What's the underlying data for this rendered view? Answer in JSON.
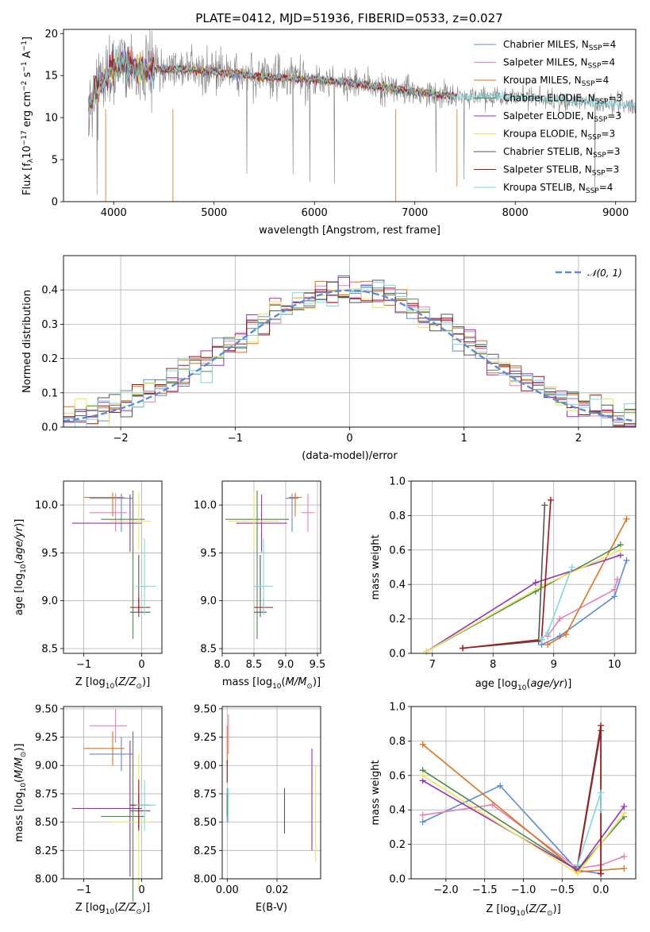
{
  "title": "PLATE=0412, MJD=51936, FIBERID=0533, z=0.027",
  "colors": {
    "Chabrier MILES": "#5b8bd9",
    "Salpeter MILES": "#e87fb8",
    "Kroupa MILES": "#e0731b",
    "Chabrier ELODIE": "#4f8a4c",
    "Salpeter ELODIE": "#9b30b8",
    "Kroupa ELODIE": "#e8e85a",
    "Chabrier STELIB": "#555555",
    "Salpeter STELIB": "#aa1111",
    "Kroupa STELIB": "#7fd8e0",
    "data": "#808080",
    "normal": "#5b8bd9"
  },
  "chart_data": [
    {
      "id": "spectrum",
      "type": "line",
      "xlabel": "wavelength [Angstrom, rest frame]",
      "ylabel": "Flux [f_λ10^{−17} erg cm^{−2} s^{−1} A^{−1}]",
      "xlim": [
        3500,
        9200
      ],
      "ylim": [
        0,
        20.5
      ],
      "xticks": [
        4000,
        5000,
        6000,
        7000,
        8000,
        9000
      ],
      "yticks": [
        0,
        5,
        10,
        15,
        20
      ],
      "legend_position": "upper-right",
      "legend": [
        {
          "name": "Chabrier MILES",
          "ssp": "4"
        },
        {
          "name": "Salpeter MILES",
          "ssp": "4"
        },
        {
          "name": "Kroupa MILES",
          "ssp": "4"
        },
        {
          "name": "Chabrier ELODIE",
          "ssp": "3"
        },
        {
          "name": "Salpeter ELODIE",
          "ssp": "3"
        },
        {
          "name": "Kroupa ELODIE",
          "ssp": "3"
        },
        {
          "name": "Chabrier STELIB",
          "ssp": "3"
        },
        {
          "name": "Salpeter STELIB",
          "ssp": "3"
        },
        {
          "name": "Kroupa STELIB",
          "ssp": "4"
        }
      ],
      "model_continuum": [
        [
          3750,
          11
        ],
        [
          3800,
          13
        ],
        [
          3900,
          14.5
        ],
        [
          4000,
          16
        ],
        [
          4100,
          16.5
        ],
        [
          4200,
          16
        ],
        [
          4300,
          15.6
        ],
        [
          4500,
          15.8
        ],
        [
          4700,
          15.8
        ],
        [
          5000,
          15.5
        ],
        [
          5200,
          15.2
        ],
        [
          5500,
          14.8
        ],
        [
          5800,
          14.6
        ],
        [
          6000,
          14.5
        ],
        [
          6300,
          14.2
        ],
        [
          6500,
          13.9
        ],
        [
          6700,
          13.6
        ],
        [
          7000,
          13.1
        ],
        [
          7300,
          12.6
        ],
        [
          7500,
          12.5
        ],
        [
          7800,
          12.5
        ],
        [
          8000,
          12.4
        ],
        [
          8300,
          12.2
        ],
        [
          8600,
          12.0
        ],
        [
          8800,
          11.7
        ],
        [
          9000,
          11.6
        ],
        [
          9200,
          11.5
        ]
      ],
      "data_range": [
        3750,
        9200
      ],
      "models_range": [
        3750,
        7420
      ],
      "stelib_extends_to": 9200
    },
    {
      "id": "residual-hist",
      "type": "bar",
      "xlabel": "(data-model)/error",
      "ylabel": "Normed distribution",
      "xlim": [
        -2.5,
        2.5
      ],
      "ylim": [
        0,
        0.5
      ],
      "xticks": [
        -2,
        -1,
        0,
        1,
        2
      ],
      "yticks": [
        0,
        0.1,
        0.2,
        0.3,
        0.4
      ],
      "legend": [
        "𝒩(0, 1)"
      ],
      "bin_width": 0.1,
      "bin_start": -2.5
    },
    {
      "id": "age-vs-Z",
      "type": "scatter",
      "xlabel": "Z [log10(Z/Z⊙)]",
      "ylabel": "age  [log10(age/yr)]",
      "xlim": [
        -1.35,
        0.35
      ],
      "ylim": [
        8.45,
        10.25
      ],
      "xticks": [
        -1,
        0
      ],
      "yticks": [
        8.5,
        9.0,
        9.5,
        10.0
      ]
    },
    {
      "id": "age-vs-mass",
      "type": "scatter",
      "xlabel": "mass [log10(M/M⊙)]",
      "ylabel": "",
      "xlim": [
        8.0,
        9.55
      ],
      "ylim": [
        8.45,
        10.25
      ],
      "xticks": [
        8.0,
        8.5,
        9.0,
        9.5
      ],
      "yticks": [
        8.5,
        9.0,
        9.5,
        10.0
      ]
    },
    {
      "id": "weight-vs-age",
      "type": "line",
      "xlabel": "age  [log10(age/yr)]",
      "ylabel": "mass weight",
      "xlim": [
        6.65,
        10.35
      ],
      "ylim": [
        0,
        1.0
      ],
      "xticks": [
        7,
        8,
        9,
        10
      ],
      "yticks": [
        0.0,
        0.2,
        0.4,
        0.6,
        0.8,
        1.0
      ]
    },
    {
      "id": "mass-vs-Z",
      "type": "scatter",
      "xlabel": "Z [log10(Z/Z⊙)]",
      "ylabel": "mass [log10(M/M⊙)]",
      "xlim": [
        -1.35,
        0.35
      ],
      "ylim": [
        8.0,
        9.52
      ],
      "xticks": [
        -1,
        0
      ],
      "yticks": [
        8.0,
        8.25,
        8.5,
        8.75,
        9.0,
        9.25,
        9.5
      ]
    },
    {
      "id": "mass-vs-EBV",
      "type": "scatter",
      "xlabel": "E(B-V)",
      "ylabel": "",
      "xlim": [
        -0.002,
        0.0375
      ],
      "ylim": [
        8.0,
        9.52
      ],
      "xticks": [
        0.0,
        0.02
      ],
      "yticks": [
        8.0,
        8.25,
        8.5,
        8.75,
        9.0,
        9.25,
        9.5
      ]
    },
    {
      "id": "weight-vs-Z",
      "type": "line",
      "xlabel": "Z [log10(Z/Z⊙)]",
      "ylabel": "mass weight",
      "xlim": [
        -2.45,
        0.45
      ],
      "ylim": [
        0,
        1.0
      ],
      "xticks": [
        -2.0,
        -1.5,
        -1.0,
        -0.5,
        0.0
      ],
      "yticks": [
        0.0,
        0.2,
        0.4,
        0.6,
        0.8,
        1.0
      ]
    }
  ],
  "models": [
    {
      "name": "Chabrier MILES",
      "Z": -0.35,
      "Zerr": 0.55,
      "age": 10.07,
      "ageErr": [
        0.35,
        0.05
      ],
      "mass": 9.1,
      "massErr": 0.1,
      "ebv": 0.0,
      "ebvErr": [
        8.5,
        8.8
      ],
      "w_age": [
        [
          8.8,
          0.05
        ],
        [
          9.1,
          0.1
        ],
        [
          10.0,
          0.33
        ],
        [
          10.2,
          0.54
        ]
      ],
      "w_Z": [
        [
          -2.3,
          0.33
        ],
        [
          -1.3,
          0.54
        ],
        [
          -0.3,
          0.05
        ],
        [
          0.0,
          0.03
        ]
      ]
    },
    {
      "name": "Salpeter MILES",
      "Z": -0.45,
      "Zerr": 0.45,
      "age": 9.92,
      "ageErr": [
        0.2,
        0.2
      ],
      "mass": 9.35,
      "massErr": 0.1,
      "ebv": 0.0005,
      "ebvErr": [
        9.1,
        9.45
      ],
      "w_age": [
        [
          8.9,
          0.1
        ],
        [
          9.1,
          0.2
        ],
        [
          10.0,
          0.37
        ],
        [
          10.05,
          0.43
        ]
      ],
      "w_Z": [
        [
          -2.3,
          0.37
        ],
        [
          -1.4,
          0.43
        ],
        [
          -0.3,
          0.06
        ],
        [
          0.0,
          0.08
        ],
        [
          0.3,
          0.13
        ]
      ]
    },
    {
      "name": "Kroupa MILES",
      "Z": -0.5,
      "Zerr": 0.5,
      "age": 10.08,
      "ageErr": [
        0.2,
        0.05
      ],
      "mass": 9.15,
      "massErr": 0.1,
      "ebv": 0.0,
      "ebvErr": [
        9.0,
        9.35
      ],
      "w_age": [
        [
          8.9,
          0.05
        ],
        [
          9.2,
          0.11
        ],
        [
          10.2,
          0.78
        ]
      ],
      "w_Z": [
        [
          -2.3,
          0.78
        ],
        [
          -0.3,
          0.04
        ],
        [
          0.0,
          0.05
        ],
        [
          0.3,
          0.06
        ]
      ]
    },
    {
      "name": "Chabrier ELODIE",
      "Z": -0.15,
      "Zerr": 0.55,
      "age": 9.85,
      "ageErr": [
        1.25,
        0.3
      ],
      "mass": 8.55,
      "massErr": 0.5,
      "ebv": 0.0,
      "ebvErr": [
        8.55,
        8.75
      ],
      "w_age": [
        [
          6.9,
          0.01
        ],
        [
          8.7,
          0.36
        ],
        [
          10.1,
          0.63
        ]
      ],
      "w_Z": [
        [
          -2.3,
          0.63
        ],
        [
          -0.3,
          0.05
        ],
        [
          0.3,
          0.36
        ]
      ]
    },
    {
      "name": "Salpeter ELODIE",
      "Z": -0.2,
      "Zerr": 1.0,
      "age": 9.81,
      "ageErr": [
        0.3,
        0.3
      ],
      "mass": 8.62,
      "massErr": 0.4,
      "ebv": 0.034,
      "ebvErr": [
        8.25,
        9.15
      ],
      "w_age": [
        [
          6.9,
          0.01
        ],
        [
          8.7,
          0.41
        ],
        [
          10.1,
          0.57
        ]
      ],
      "w_Z": [
        [
          -2.3,
          0.57
        ],
        [
          -0.3,
          0.05
        ],
        [
          0.3,
          0.42
        ]
      ]
    },
    {
      "name": "Kroupa ELODIE",
      "Z": -0.05,
      "Zerr": 0.5,
      "age": 9.83,
      "ageErr": [
        0.3,
        0.3
      ],
      "mass": 8.5,
      "massErr": 0.4,
      "ebv": 0.0355,
      "ebvErr": [
        8.15,
        9.0
      ],
      "w_age": [
        [
          6.9,
          0.01
        ],
        [
          8.8,
          0.39
        ],
        [
          10.1,
          0.6
        ]
      ],
      "w_Z": [
        [
          -2.3,
          0.6
        ],
        [
          -0.3,
          0.03
        ],
        [
          0.3,
          0.38
        ]
      ]
    },
    {
      "name": "Chabrier STELIB",
      "Z": -0.05,
      "Zerr": 0.15,
      "age": 8.88,
      "ageErr": [
        0.05,
        0.6
      ],
      "mass": 8.6,
      "massErr": 0.1,
      "ebv": 0.023,
      "ebvErr": [
        8.4,
        8.8
      ],
      "w_age": [
        [
          7.5,
          0.03
        ],
        [
          8.75,
          0.07
        ],
        [
          8.85,
          0.86
        ]
      ],
      "w_Z": [
        [
          -0.3,
          0.07
        ],
        [
          0.0,
          0.86
        ],
        [
          0.0,
          0.03
        ]
      ]
    },
    {
      "name": "Salpeter STELIB",
      "Z": -0.05,
      "Zerr": 0.15,
      "age": 8.93,
      "ageErr": [
        0.05,
        0.1
      ],
      "mass": 8.65,
      "massErr": 0.15,
      "ebv": 0.0,
      "ebvErr": [
        8.85,
        9.05
      ],
      "w_age": [
        [
          7.5,
          0.03
        ],
        [
          8.8,
          0.08
        ],
        [
          8.95,
          0.89
        ]
      ],
      "w_Z": [
        [
          -0.3,
          0.08
        ],
        [
          0.0,
          0.89
        ],
        [
          0.0,
          0.03
        ]
      ]
    },
    {
      "name": "Kroupa STELIB",
      "Z": 0.05,
      "Zerr": 0.15,
      "age": 9.15,
      "ageErr": [
        0.3,
        0.5
      ],
      "mass": 8.65,
      "massErr": 0.15,
      "ebv": 0.0005,
      "ebvErr": [
        8.5,
        8.8
      ],
      "w_age": [
        [
          8.8,
          0.08
        ],
        [
          8.9,
          0.12
        ],
        [
          9.3,
          0.5
        ]
      ],
      "w_Z": [
        [
          -0.3,
          0.08
        ],
        [
          0.0,
          0.5
        ],
        [
          0.0,
          0.4
        ]
      ]
    }
  ]
}
